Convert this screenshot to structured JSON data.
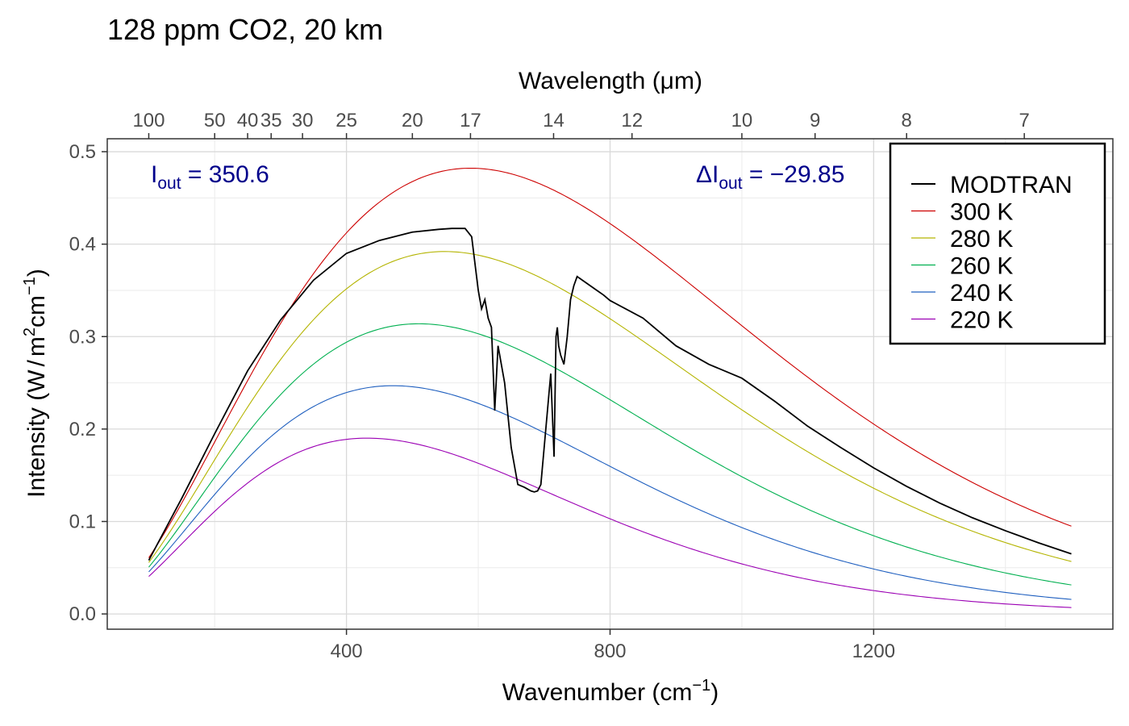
{
  "chart_data": {
    "type": "line",
    "title": "128 ppm CO2, 20 km",
    "xlabel": "Wavenumber (cm",
    "xlabel_sup": "−1",
    "xlabel_close": ")",
    "ylabel_parts": [
      "Intensity (W",
      "/",
      "m",
      "2",
      "cm",
      "−1",
      ")"
    ],
    "x2label": "Wavelength (μm)",
    "xlim": [
      100,
      1500
    ],
    "ylim": [
      0,
      0.5
    ],
    "x_ticks": [
      400,
      800,
      1200
    ],
    "y_ticks": [
      0.0,
      0.1,
      0.2,
      0.3,
      0.4,
      0.5
    ],
    "y_tick_labels": [
      "0.0",
      "0.1",
      "0.2",
      "0.3",
      "0.4",
      "0.5"
    ],
    "x2_ticks": [
      {
        "label": "100",
        "wavenumber": 100
      },
      {
        "label": "50",
        "wavenumber": 200
      },
      {
        "label": "40",
        "wavenumber": 250
      },
      {
        "label": "35",
        "wavenumber": 285.7
      },
      {
        "label": "30",
        "wavenumber": 333.3
      },
      {
        "label": "25",
        "wavenumber": 400
      },
      {
        "label": "20",
        "wavenumber": 500
      },
      {
        "label": "17",
        "wavenumber": 588.2
      },
      {
        "label": "14",
        "wavenumber": 714.3
      },
      {
        "label": "12",
        "wavenumber": 833.3
      },
      {
        "label": "10",
        "wavenumber": 1000
      },
      {
        "label": "9",
        "wavenumber": 1111.1
      },
      {
        "label": "8",
        "wavenumber": 1250
      },
      {
        "label": "7",
        "wavenumber": 1428.6
      }
    ],
    "grid": true,
    "legend_position": "top-right",
    "annotations": {
      "iout": {
        "symbol": "I",
        "sub": "out",
        "eq": " = ",
        "value": "350.6"
      },
      "delta": {
        "symbol": "ΔI",
        "sub": "out",
        "eq": " = ",
        "value": "−29.85"
      }
    },
    "series": [
      {
        "name": "MODTRAN",
        "color": "#000000",
        "x": [
          100,
          150,
          200,
          250,
          300,
          350,
          400,
          450,
          500,
          540,
          560,
          580,
          590,
          600,
          605,
          610,
          615,
          620,
          625,
          630,
          640,
          650,
          660,
          670,
          680,
          685,
          690,
          695,
          700,
          705,
          710,
          715,
          718,
          720,
          722,
          725,
          730,
          735,
          740,
          745,
          750,
          760,
          770,
          780,
          790,
          800,
          850,
          900,
          950,
          1000,
          1050,
          1100,
          1150,
          1200,
          1250,
          1300,
          1350,
          1400,
          1450,
          1500
        ],
        "y": [
          0.058,
          0.125,
          0.195,
          0.263,
          0.318,
          0.361,
          0.39,
          0.404,
          0.413,
          0.416,
          0.417,
          0.417,
          0.408,
          0.35,
          0.33,
          0.34,
          0.32,
          0.31,
          0.22,
          0.29,
          0.25,
          0.18,
          0.14,
          0.137,
          0.133,
          0.132,
          0.133,
          0.14,
          0.18,
          0.22,
          0.26,
          0.17,
          0.3,
          0.31,
          0.29,
          0.28,
          0.27,
          0.3,
          0.34,
          0.355,
          0.365,
          0.36,
          0.355,
          0.35,
          0.345,
          0.339,
          0.32,
          0.29,
          0.27,
          0.255,
          0.23,
          0.203,
          0.18,
          0.158,
          0.138,
          0.12,
          0.104,
          0.09,
          0.077,
          0.065
        ]
      },
      {
        "name": "300 K",
        "color": "#cd0000",
        "temperature": 300
      },
      {
        "name": "280 K",
        "color": "#b4b400",
        "temperature": 280
      },
      {
        "name": "260 K",
        "color": "#00b050",
        "temperature": 260
      },
      {
        "name": "240 K",
        "color": "#1f5fbf",
        "temperature": 240
      },
      {
        "name": "220 K",
        "color": "#9b00b4",
        "temperature": 220
      }
    ]
  }
}
